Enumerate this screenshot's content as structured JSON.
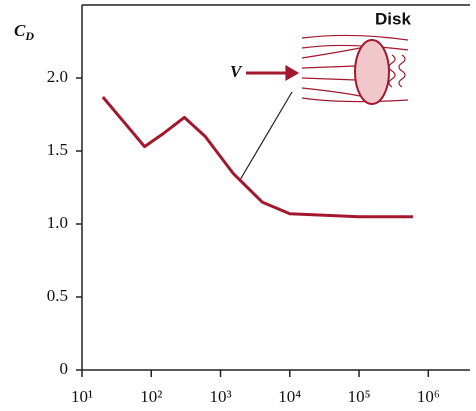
{
  "chart_data": {
    "type": "line",
    "y_label": {
      "symbol": "C",
      "subscript": "D"
    },
    "annotations": {
      "disk": "Disk",
      "velocity": "V"
    },
    "xscale": "log",
    "xlim": [
      10,
      4000000
    ],
    "ylim": [
      0,
      2.5
    ],
    "xticks": [
      {
        "value": 10,
        "label": "10¹"
      },
      {
        "value": 100,
        "label": "10²"
      },
      {
        "value": 1000,
        "label": "10³"
      },
      {
        "value": 10000,
        "label": "10⁴"
      },
      {
        "value": 100000,
        "label": "10⁵"
      },
      {
        "value": 1000000,
        "label": "10⁶"
      }
    ],
    "yticks": [
      0,
      0.5,
      {
        "value": 1,
        "label": "1.0"
      },
      1.5,
      {
        "value": 2,
        "label": "2.0"
      }
    ],
    "color": "#a3182c",
    "x": [
      20,
      40,
      80,
      150,
      300,
      600,
      1500,
      4000,
      10000,
      100000,
      600000
    ],
    "values": [
      1.87,
      1.7,
      1.53,
      1.62,
      1.73,
      1.6,
      1.35,
      1.15,
      1.07,
      1.05,
      1.05
    ]
  }
}
